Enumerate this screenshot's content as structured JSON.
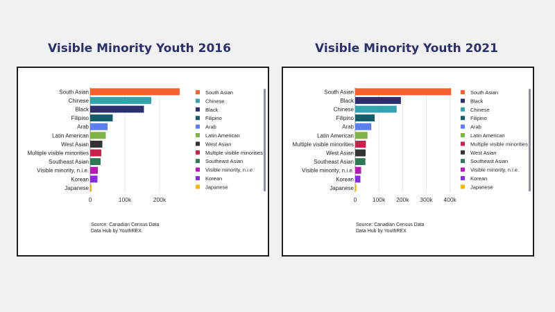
{
  "chart_data": [
    {
      "type": "bar",
      "orientation": "horizontal",
      "title": "Visible Minority Youth 2016",
      "categories": [
        "South Asian",
        "Chinese",
        "Black",
        "Filipino",
        "Arab",
        "Latin American",
        "West Asian",
        "Multiple visible minorities",
        "Southeast Asian",
        "Visible minority, n.i.e.",
        "Korean",
        "Japanese"
      ],
      "values": [
        258000,
        176000,
        155000,
        65000,
        50000,
        45000,
        35000,
        32000,
        30000,
        22000,
        21000,
        4000
      ],
      "colors": [
        "#f4622f",
        "#34a3b0",
        "#2c2f6e",
        "#155d6b",
        "#5b7ef0",
        "#7db347",
        "#333333",
        "#c8224a",
        "#2e7a55",
        "#b619b4",
        "#8a2be2",
        "#f5b800"
      ],
      "xticks": [
        "0",
        "100k",
        "200k"
      ],
      "xlim": [
        0,
        280000
      ],
      "legend": [
        "South Asian",
        "Chinese",
        "Black",
        "Filipino",
        "Arab",
        "Latin American",
        "West Asian",
        "Multiple visible minorities",
        "Southeast Asian",
        "Visible minority, n.i.e.",
        "Korean",
        "Japanese"
      ],
      "legend_position": "right",
      "source_lines": [
        "Source: Canadian Census Data",
        "Data Hub by YouthREX"
      ]
    },
    {
      "type": "bar",
      "orientation": "horizontal",
      "title": "Visible Minority Youth 2021",
      "categories": [
        "South Asian",
        "Black",
        "Chinese",
        "Filipino",
        "Arab",
        "Latin American",
        "Multiple visible minorities",
        "West Asian",
        "Southeast Asian",
        "Visible minority, n.i.e.",
        "Korean",
        "Japanese"
      ],
      "values": [
        405000,
        193000,
        175000,
        82000,
        68000,
        52000,
        45000,
        44000,
        43000,
        25000,
        22000,
        5000
      ],
      "colors": [
        "#f4622f",
        "#2c2f6e",
        "#34a3b0",
        "#155d6b",
        "#5b7ef0",
        "#7db347",
        "#c8224a",
        "#333333",
        "#2e7a55",
        "#b619b4",
        "#8a2be2",
        "#f5b800"
      ],
      "xticks": [
        "0",
        "100k",
        "200k",
        "300k",
        "400k"
      ],
      "xlim": [
        0,
        410000
      ],
      "legend": [
        "South Asian",
        "Black",
        "Chinese",
        "Filipino",
        "Arab",
        "Latin American",
        "Multiple visible minorities",
        "West Asian",
        "Southeast Asian",
        "Visible minority, n.i.e.",
        "Korean",
        "Japanese"
      ],
      "legend_position": "right",
      "source_lines": [
        "Source: Canadian Census Data",
        "Data Hub by YouthREX"
      ]
    }
  ]
}
